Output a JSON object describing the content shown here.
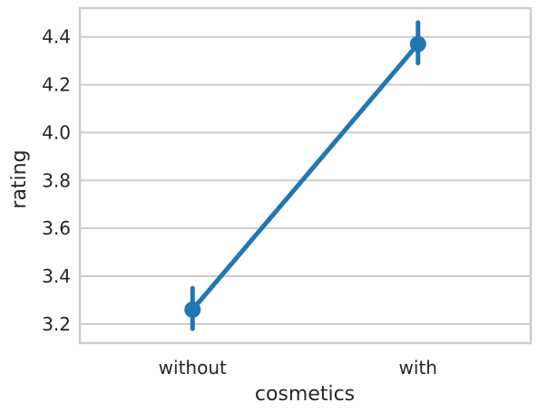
{
  "chart_data": {
    "type": "line",
    "categories": [
      "without",
      "with"
    ],
    "series": [
      {
        "values": [
          3.26,
          4.37
        ],
        "ci_low": [
          3.18,
          4.29
        ],
        "ci_high": [
          3.35,
          4.46
        ],
        "color": "#1f77b4"
      }
    ],
    "xlabel": "cosmetics",
    "ylabel": "rating",
    "ylim": [
      3.12,
      4.52
    ],
    "yticks": [
      3.2,
      3.4,
      3.6,
      3.8,
      4.0,
      4.2,
      4.4
    ],
    "ytick_labels": [
      "3.2",
      "3.4",
      "3.6",
      "3.8",
      "4.0",
      "4.2",
      "4.4"
    ],
    "grid": "horizontal",
    "style": "seaborn whitegrid point plot with error bars"
  }
}
